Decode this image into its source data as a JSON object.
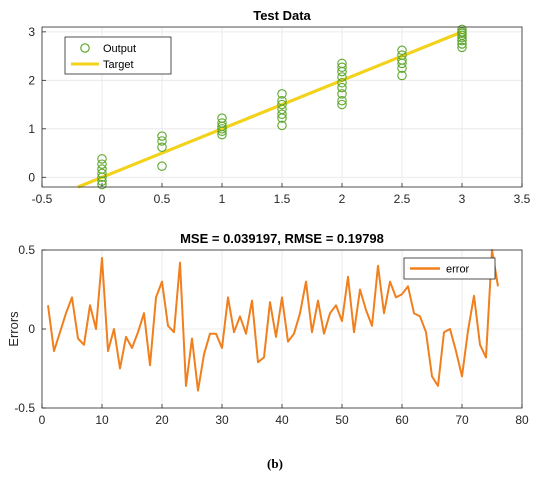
{
  "chart_data": [
    {
      "type": "scatter",
      "title": "Test Data",
      "xlim": [
        -0.5,
        3.5
      ],
      "ylim": [
        -0.2,
        3.1
      ],
      "xticks": [
        -0.5,
        0,
        0.5,
        1,
        1.5,
        2,
        2.5,
        3,
        3.5
      ],
      "xtick_labels": [
        "-0.5",
        "0",
        "0.5",
        "1",
        "1.5",
        "2",
        "2.5",
        "3",
        "3.5"
      ],
      "yticks": [
        0,
        1,
        2,
        3
      ],
      "ytick_labels": [
        "0",
        "1",
        "2",
        "3"
      ],
      "grid": true,
      "legend_position": "top-left",
      "series": [
        {
          "name": "Output",
          "marker": "circle",
          "color": "#5fa82d",
          "x": [
            0,
            0,
            0,
            0,
            0,
            0,
            0,
            0.5,
            0.5,
            0.5,
            0.5,
            1,
            1,
            1,
            1,
            1,
            1,
            1.5,
            1.5,
            1.5,
            1.5,
            1.5,
            1.5,
            1.5,
            2,
            2,
            2,
            2,
            2,
            2,
            2,
            2,
            2,
            2.5,
            2.5,
            2.5,
            2.5,
            2.5,
            2.5,
            3,
            3,
            3,
            3,
            3,
            3,
            3,
            3
          ],
          "y": [
            -0.15,
            -0.08,
            0.0,
            0.08,
            0.17,
            0.27,
            0.38,
            0.23,
            0.62,
            0.75,
            0.85,
            0.88,
            0.95,
            1.0,
            1.05,
            1.12,
            1.22,
            1.07,
            1.22,
            1.3,
            1.4,
            1.5,
            1.58,
            1.72,
            1.5,
            1.58,
            1.72,
            1.85,
            1.95,
            2.07,
            2.18,
            2.27,
            2.35,
            2.1,
            2.25,
            2.35,
            2.42,
            2.52,
            2.62,
            2.68,
            2.75,
            2.82,
            2.88,
            2.93,
            2.97,
            3.0,
            3.05
          ]
        },
        {
          "name": "Target",
          "type": "line",
          "color": "#f2d21b",
          "x": [
            -0.2,
            3.0
          ],
          "y": [
            -0.2,
            3.0
          ]
        }
      ]
    },
    {
      "type": "line",
      "title": "MSE = 0.039197, RMSE = 0.19798",
      "ylabel": "Errors",
      "xlim": [
        0,
        80
      ],
      "ylim": [
        -0.5,
        0.5
      ],
      "xticks": [
        0,
        10,
        20,
        30,
        40,
        50,
        60,
        70,
        80
      ],
      "xtick_labels": [
        "0",
        "10",
        "20",
        "30",
        "40",
        "50",
        "60",
        "70",
        "80"
      ],
      "yticks": [
        -0.5,
        0,
        0.5
      ],
      "ytick_labels": [
        "-0.5",
        "0",
        "0.5"
      ],
      "grid": true,
      "legend_position": "top-right",
      "series": [
        {
          "name": "error",
          "color": "#f07f1e",
          "x": [
            1,
            2,
            3,
            4,
            5,
            6,
            7,
            8,
            9,
            10,
            11,
            12,
            13,
            14,
            15,
            16,
            17,
            18,
            19,
            20,
            21,
            22,
            23,
            24,
            25,
            26,
            27,
            28,
            29,
            30,
            31,
            32,
            33,
            34,
            35,
            36,
            37,
            38,
            39,
            40,
            41,
            42,
            43,
            44,
            45,
            46,
            47,
            48,
            49,
            50,
            51,
            52,
            53,
            54,
            55,
            56,
            57,
            58,
            59,
            60,
            61,
            62,
            63,
            64,
            65,
            66,
            67,
            68,
            69,
            70,
            71,
            72,
            73,
            74,
            75,
            76
          ],
          "y": [
            0.15,
            -0.14,
            -0.02,
            0.1,
            0.2,
            -0.06,
            -0.1,
            0.15,
            0.0,
            0.45,
            -0.14,
            0.0,
            -0.25,
            -0.05,
            -0.12,
            -0.02,
            0.1,
            -0.23,
            0.2,
            0.3,
            0.02,
            -0.02,
            0.42,
            -0.36,
            -0.06,
            -0.39,
            -0.16,
            -0.03,
            -0.03,
            -0.12,
            0.2,
            -0.02,
            0.08,
            -0.03,
            0.18,
            -0.21,
            -0.18,
            0.17,
            -0.05,
            0.2,
            -0.08,
            -0.03,
            0.1,
            0.3,
            -0.02,
            0.18,
            -0.03,
            0.1,
            0.15,
            0.05,
            0.33,
            -0.02,
            0.25,
            0.12,
            0.02,
            0.4,
            0.1,
            0.3,
            0.2,
            0.22,
            0.27,
            0.1,
            0.08,
            -0.02,
            -0.3,
            -0.36,
            -0.02,
            0.0,
            -0.14,
            -0.3,
            -0.01,
            0.21,
            -0.1,
            -0.18,
            0.5,
            0.27
          ]
        }
      ]
    }
  ],
  "caption": "(b)",
  "colors": {
    "axis": "#262626",
    "grid": "#e6e6e6"
  }
}
